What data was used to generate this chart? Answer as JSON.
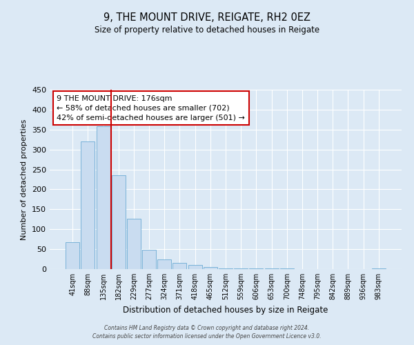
{
  "title": "9, THE MOUNT DRIVE, REIGATE, RH2 0EZ",
  "subtitle": "Size of property relative to detached houses in Reigate",
  "xlabel": "Distribution of detached houses by size in Reigate",
  "ylabel": "Number of detached properties",
  "bar_labels": [
    "41sqm",
    "88sqm",
    "135sqm",
    "182sqm",
    "229sqm",
    "277sqm",
    "324sqm",
    "371sqm",
    "418sqm",
    "465sqm",
    "512sqm",
    "559sqm",
    "606sqm",
    "653sqm",
    "700sqm",
    "748sqm",
    "795sqm",
    "842sqm",
    "889sqm",
    "936sqm",
    "983sqm"
  ],
  "bar_values": [
    67,
    320,
    358,
    235,
    126,
    49,
    25,
    15,
    10,
    5,
    2,
    2,
    1,
    1,
    1,
    0,
    0,
    0,
    0,
    0,
    2
  ],
  "bar_color": "#c9dcf0",
  "bar_edge_color": "#6aaad4",
  "vline_color": "#cc0000",
  "ylim": [
    0,
    450
  ],
  "yticks": [
    0,
    50,
    100,
    150,
    200,
    250,
    300,
    350,
    400,
    450
  ],
  "annotation_text": "9 THE MOUNT DRIVE: 176sqm\n← 58% of detached houses are smaller (702)\n42% of semi-detached houses are larger (501) →",
  "annotation_box_color": "#ffffff",
  "annotation_box_edge_color": "#cc0000",
  "footer_line1": "Contains HM Land Registry data © Crown copyright and database right 2024.",
  "footer_line2": "Contains public sector information licensed under the Open Government Licence v3.0.",
  "background_color": "#dce9f5",
  "plot_bg_color": "#dce9f5",
  "grid_color": "#ffffff"
}
